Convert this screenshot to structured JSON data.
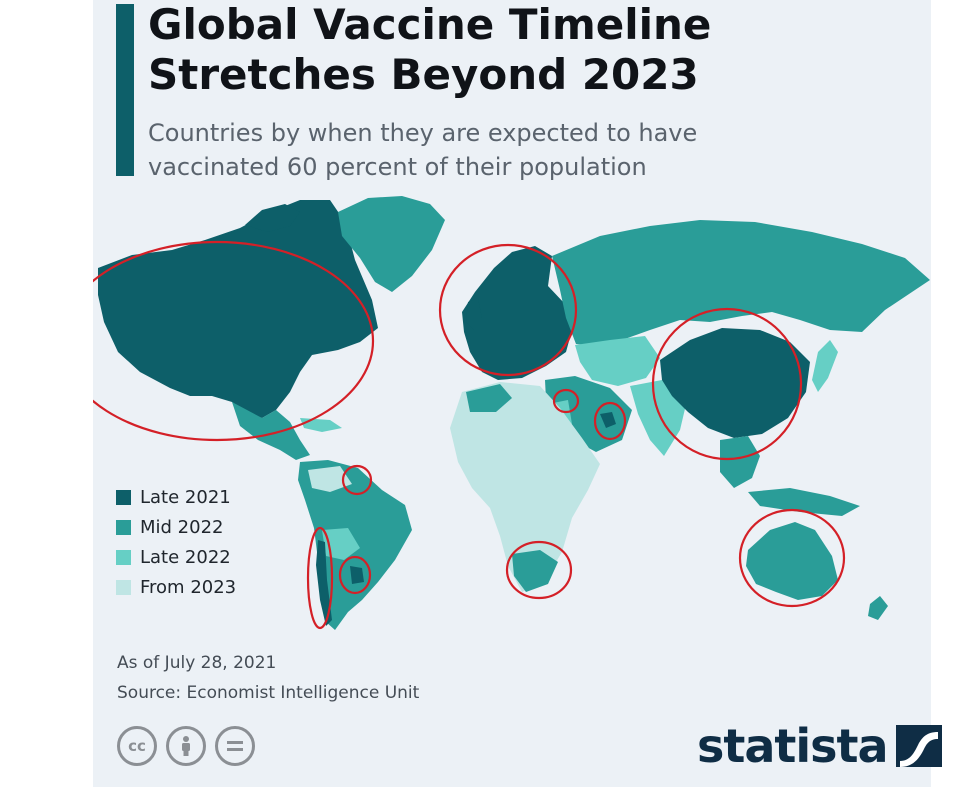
{
  "title": {
    "line1": "Global Vaccine Timeline",
    "line2": "Stretches Beyond 2023"
  },
  "subtitle": {
    "line1": "Countries by when they are expected to have",
    "line2": "vaccinated 60 percent of their population"
  },
  "legend": [
    {
      "label": "Late 2021",
      "color": "#0d5f69"
    },
    {
      "label": "Mid 2022",
      "color": "#2a9d98"
    },
    {
      "label": "Late 2022",
      "color": "#66cfc5"
    },
    {
      "label": "From 2023",
      "color": "#bfe5e4"
    }
  ],
  "footnote": {
    "date": "As of July 28, 2021",
    "source": "Source: Economist Intelligence Unit"
  },
  "license_icons": [
    "creative-commons-icon",
    "attribution-person-icon",
    "no-derivatives-icon"
  ],
  "brand": {
    "name": "statista",
    "color": "#0f2d45"
  },
  "annotation_color": "#d42027",
  "regions": [
    {
      "name": "North America",
      "category": "Late 2021"
    },
    {
      "name": "Europe",
      "category": "Late 2021"
    },
    {
      "name": "China",
      "category": "Late 2021"
    },
    {
      "name": "Russia",
      "category": "Mid 2022"
    },
    {
      "name": "Brazil",
      "category": "Mid 2022"
    },
    {
      "name": "Australia",
      "category": "Mid 2022"
    },
    {
      "name": "Central Africa",
      "category": "From 2023"
    },
    {
      "name": "South Africa",
      "category": "Mid 2022"
    }
  ]
}
